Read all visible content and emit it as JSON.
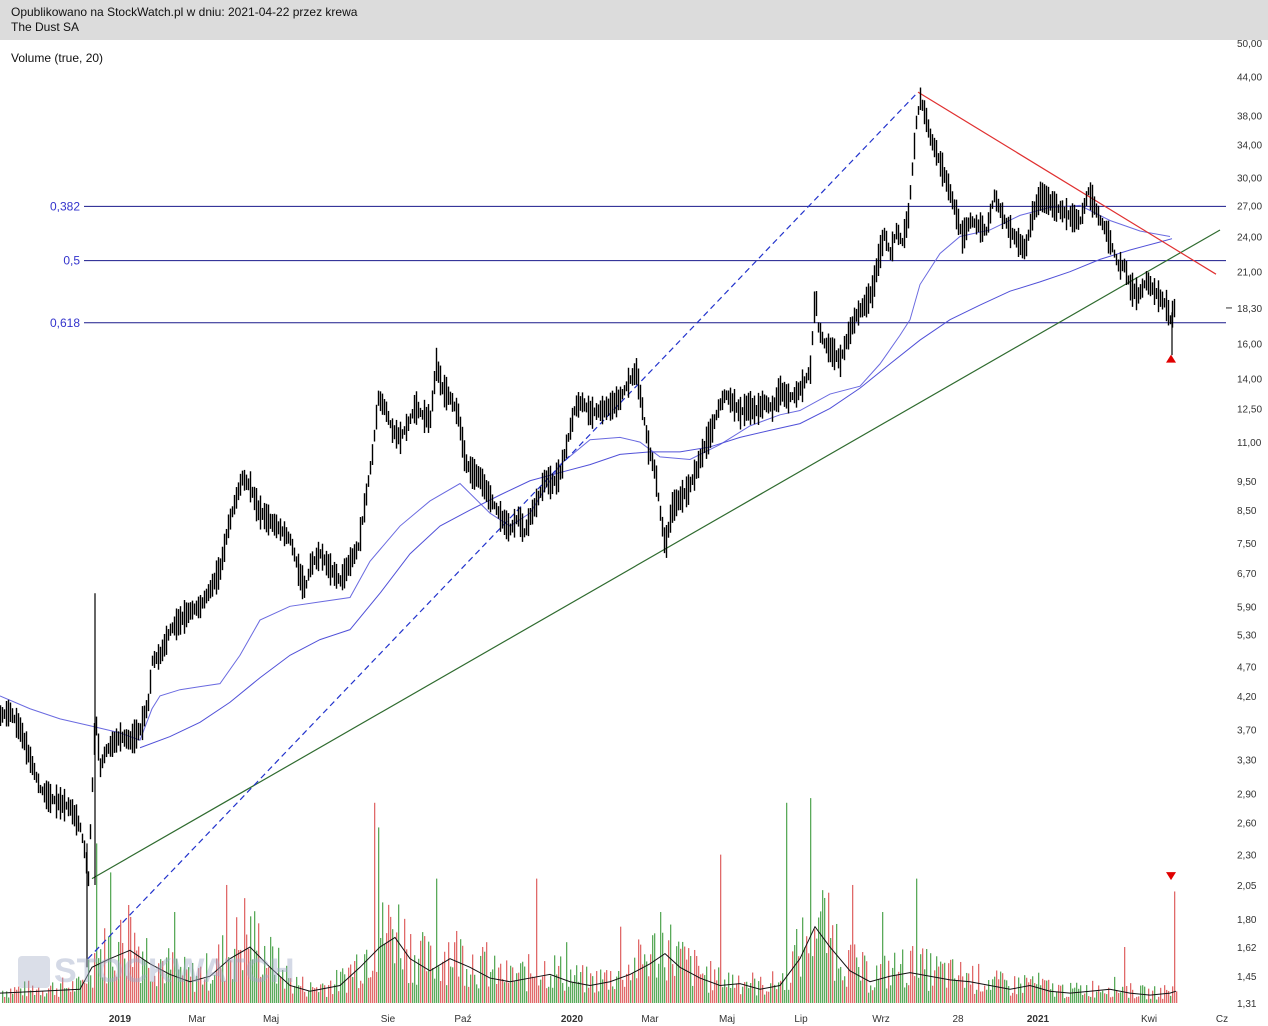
{
  "header": {
    "published": "Opublikowano na StockWatch.pl w dniu: 2021-04-22 przez krewa",
    "instrument": "The Dust SA"
  },
  "indicator_label": "Volume (true, 20)",
  "watermark": "STOCKWATCH",
  "chart_data": {
    "type": "line",
    "title": "",
    "y_scale": "log",
    "ylim": [
      1.31,
      50.0
    ],
    "y_ticks": [
      "50,00",
      "44,00",
      "38,00",
      "34,00",
      "30,00",
      "27,00",
      "24,00",
      "21,00",
      "18,30",
      "16,00",
      "14,00",
      "12,50",
      "11,00",
      "9,50",
      "8,50",
      "7,50",
      "6,70",
      "5,90",
      "5,30",
      "4,70",
      "4,20",
      "3,70",
      "3,30",
      "2,90",
      "2,60",
      "2,30",
      "2,05",
      "1,80",
      "1,62",
      "1,45",
      "1,31"
    ],
    "last_price_label": "18,30",
    "x_labels": [
      {
        "text": "2019",
        "bold": true
      },
      {
        "text": "Mar",
        "bold": false
      },
      {
        "text": "Maj",
        "bold": false
      },
      {
        "text": "Sie",
        "bold": false
      },
      {
        "text": "Paź",
        "bold": false
      },
      {
        "text": "2020",
        "bold": true
      },
      {
        "text": "Mar",
        "bold": false
      },
      {
        "text": "Maj",
        "bold": false
      },
      {
        "text": "Lip",
        "bold": false
      },
      {
        "text": "Wrz",
        "bold": false
      },
      {
        "text": "28",
        "bold": false
      },
      {
        "text": "2021",
        "bold": true
      },
      {
        "text": "Kwi",
        "bold": false
      },
      {
        "text": "Cz",
        "bold": false
      }
    ],
    "fibonacci_levels": [
      {
        "label": "0,382",
        "price": 26.9
      },
      {
        "label": "0,5",
        "price": 21.9
      },
      {
        "label": "0,618",
        "price": 17.3
      }
    ],
    "price_path": [
      [
        0,
        3.9
      ],
      [
        10,
        3.95
      ],
      [
        20,
        3.7
      ],
      [
        30,
        3.3
      ],
      [
        40,
        2.95
      ],
      [
        50,
        2.85
      ],
      [
        60,
        2.8
      ],
      [
        70,
        2.75
      ],
      [
        80,
        2.55
      ],
      [
        85,
        2.3
      ],
      [
        88,
        2.1
      ],
      [
        92,
        3.0
      ],
      [
        95,
        3.9
      ],
      [
        100,
        3.2
      ],
      [
        105,
        3.4
      ],
      [
        112,
        3.5
      ],
      [
        120,
        3.6
      ],
      [
        130,
        3.55
      ],
      [
        140,
        3.7
      ],
      [
        148,
        4.1
      ],
      [
        152,
        4.8
      ],
      [
        160,
        4.9
      ],
      [
        170,
        5.4
      ],
      [
        180,
        5.6
      ],
      [
        190,
        5.8
      ],
      [
        200,
        5.9
      ],
      [
        210,
        6.3
      ],
      [
        220,
        6.8
      ],
      [
        228,
        8.0
      ],
      [
        235,
        8.8
      ],
      [
        242,
        9.6
      ],
      [
        250,
        9.3
      ],
      [
        258,
        8.5
      ],
      [
        268,
        8.2
      ],
      [
        280,
        7.9
      ],
      [
        290,
        7.6
      ],
      [
        300,
        6.6
      ],
      [
        305,
        6.3
      ],
      [
        310,
        6.9
      ],
      [
        320,
        7.2
      ],
      [
        330,
        6.8
      ],
      [
        340,
        6.5
      ],
      [
        350,
        7.0
      ],
      [
        358,
        7.4
      ],
      [
        365,
        8.8
      ],
      [
        372,
        10.5
      ],
      [
        378,
        13.0
      ],
      [
        385,
        12.5
      ],
      [
        392,
        11.5
      ],
      [
        400,
        11.2
      ],
      [
        408,
        11.8
      ],
      [
        415,
        12.6
      ],
      [
        422,
        12.2
      ],
      [
        430,
        12.0
      ],
      [
        436,
        14.8
      ],
      [
        442,
        13.5
      ],
      [
        450,
        13.0
      ],
      [
        458,
        12.2
      ],
      [
        465,
        10.2
      ],
      [
        472,
        9.8
      ],
      [
        480,
        9.6
      ],
      [
        488,
        9.0
      ],
      [
        495,
        8.6
      ],
      [
        502,
        8.2
      ],
      [
        510,
        7.9
      ],
      [
        518,
        8.3
      ],
      [
        524,
        7.8
      ],
      [
        530,
        8.3
      ],
      [
        538,
        8.9
      ],
      [
        545,
        9.6
      ],
      [
        552,
        9.4
      ],
      [
        560,
        9.8
      ],
      [
        568,
        11.2
      ],
      [
        575,
        12.6
      ],
      [
        582,
        12.8
      ],
      [
        590,
        12.3
      ],
      [
        600,
        12.4
      ],
      [
        610,
        12.6
      ],
      [
        620,
        13.0
      ],
      [
        628,
        13.8
      ],
      [
        636,
        14.4
      ],
      [
        642,
        12.5
      ],
      [
        648,
        10.8
      ],
      [
        655,
        9.8
      ],
      [
        660,
        8.4
      ],
      [
        665,
        7.4
      ],
      [
        672,
        8.6
      ],
      [
        680,
        8.9
      ],
      [
        688,
        9.2
      ],
      [
        696,
        9.9
      ],
      [
        704,
        10.8
      ],
      [
        712,
        11.6
      ],
      [
        718,
        12.5
      ],
      [
        725,
        13.2
      ],
      [
        732,
        12.8
      ],
      [
        740,
        12.3
      ],
      [
        748,
        12.6
      ],
      [
        756,
        12.4
      ],
      [
        764,
        12.8
      ],
      [
        772,
        12.5
      ],
      [
        780,
        13.4
      ],
      [
        788,
        13.0
      ],
      [
        796,
        13.2
      ],
      [
        804,
        13.8
      ],
      [
        810,
        14.5
      ],
      [
        815,
        19.5
      ],
      [
        818,
        17.0
      ],
      [
        824,
        16.0
      ],
      [
        832,
        15.5
      ],
      [
        840,
        15.0
      ],
      [
        848,
        16.5
      ],
      [
        856,
        17.8
      ],
      [
        864,
        18.5
      ],
      [
        872,
        19.5
      ],
      [
        878,
        22.0
      ],
      [
        884,
        24.2
      ],
      [
        890,
        22.5
      ],
      [
        896,
        24.5
      ],
      [
        902,
        23.5
      ],
      [
        908,
        26.0
      ],
      [
        912,
        31.0
      ],
      [
        916,
        37.0
      ],
      [
        920,
        40.5
      ],
      [
        925,
        38.0
      ],
      [
        930,
        35.0
      ],
      [
        936,
        33.0
      ],
      [
        942,
        31.0
      ],
      [
        948,
        29.0
      ],
      [
        955,
        26.5
      ],
      [
        962,
        24.0
      ],
      [
        970,
        25.5
      ],
      [
        978,
        25.0
      ],
      [
        986,
        24.5
      ],
      [
        994,
        28.0
      ],
      [
        1002,
        26.0
      ],
      [
        1010,
        24.5
      ],
      [
        1018,
        23.5
      ],
      [
        1025,
        22.8
      ],
      [
        1032,
        26.0
      ],
      [
        1040,
        28.0
      ],
      [
        1048,
        27.5
      ],
      [
        1056,
        26.8
      ],
      [
        1064,
        26.3
      ],
      [
        1072,
        25.8
      ],
      [
        1080,
        25.5
      ],
      [
        1088,
        28.5
      ],
      [
        1094,
        27.0
      ],
      [
        1100,
        25.5
      ],
      [
        1106,
        24.5
      ],
      [
        1112,
        23.0
      ],
      [
        1118,
        21.5
      ],
      [
        1124,
        21.5
      ],
      [
        1130,
        19.8
      ],
      [
        1138,
        19.2
      ],
      [
        1146,
        20.3
      ],
      [
        1154,
        19.5
      ],
      [
        1160,
        19.0
      ],
      [
        1166,
        18.5
      ],
      [
        1170,
        17.5
      ],
      [
        1174,
        18.3
      ]
    ],
    "sma_short_path": [
      [
        0,
        4.2
      ],
      [
        30,
        4.0
      ],
      [
        60,
        3.85
      ],
      [
        90,
        3.75
      ],
      [
        120,
        3.65
      ],
      [
        140,
        3.55
      ],
      [
        152,
        4.0
      ],
      [
        160,
        4.2
      ],
      [
        180,
        4.3
      ],
      [
        200,
        4.35
      ],
      [
        220,
        4.4
      ],
      [
        240,
        4.9
      ],
      [
        260,
        5.6
      ],
      [
        290,
        5.9
      ],
      [
        320,
        6.0
      ],
      [
        350,
        6.1
      ],
      [
        370,
        7.0
      ],
      [
        400,
        8.0
      ],
      [
        430,
        8.8
      ],
      [
        460,
        9.4
      ],
      [
        490,
        8.4
      ],
      [
        510,
        8.0
      ],
      [
        530,
        8.4
      ],
      [
        560,
        10.1
      ],
      [
        590,
        11.1
      ],
      [
        620,
        11.2
      ],
      [
        640,
        11.0
      ],
      [
        660,
        10.4
      ],
      [
        690,
        10.3
      ],
      [
        720,
        10.9
      ],
      [
        750,
        11.7
      ],
      [
        780,
        12.2
      ],
      [
        800,
        12.4
      ],
      [
        830,
        13.2
      ],
      [
        860,
        13.6
      ],
      [
        880,
        14.8
      ],
      [
        900,
        16.5
      ],
      [
        910,
        17.5
      ],
      [
        920,
        20.0
      ],
      [
        940,
        22.5
      ],
      [
        960,
        24.0
      ],
      [
        990,
        24.6
      ],
      [
        1020,
        26.0
      ],
      [
        1050,
        26.8
      ],
      [
        1080,
        27.0
      ],
      [
        1110,
        25.5
      ],
      [
        1140,
        24.5
      ],
      [
        1170,
        24.0
      ]
    ],
    "sma_long_path": [
      [
        140,
        3.45
      ],
      [
        170,
        3.6
      ],
      [
        200,
        3.8
      ],
      [
        230,
        4.1
      ],
      [
        260,
        4.5
      ],
      [
        290,
        4.9
      ],
      [
        320,
        5.2
      ],
      [
        350,
        5.4
      ],
      [
        380,
        6.2
      ],
      [
        410,
        7.2
      ],
      [
        440,
        8.0
      ],
      [
        470,
        8.5
      ],
      [
        500,
        9.0
      ],
      [
        530,
        9.5
      ],
      [
        560,
        9.8
      ],
      [
        590,
        10.1
      ],
      [
        620,
        10.5
      ],
      [
        650,
        10.6
      ],
      [
        680,
        10.6
      ],
      [
        710,
        10.8
      ],
      [
        740,
        11.2
      ],
      [
        770,
        11.5
      ],
      [
        800,
        11.8
      ],
      [
        830,
        12.5
      ],
      [
        860,
        13.5
      ],
      [
        890,
        14.8
      ],
      [
        920,
        16.2
      ],
      [
        950,
        17.5
      ],
      [
        980,
        18.5
      ],
      [
        1010,
        19.5
      ],
      [
        1040,
        20.2
      ],
      [
        1070,
        21.0
      ],
      [
        1100,
        22.0
      ],
      [
        1130,
        22.8
      ],
      [
        1160,
        23.5
      ],
      [
        1172,
        23.8
      ]
    ],
    "trendlines": [
      {
        "name": "support",
        "color": "#2f6b2f",
        "from": [
          92,
          2.1
        ],
        "to": [
          1220,
          24.6
        ],
        "style": "solid"
      },
      {
        "name": "resistance",
        "color": "#e03030",
        "from": [
          918,
          41.5
        ],
        "to": [
          1216,
          20.8
        ],
        "style": "solid"
      },
      {
        "name": "projection",
        "color": "#2233cc",
        "from": [
          88,
          1.55
        ],
        "to": [
          918,
          41.5
        ],
        "style": "dashed"
      }
    ],
    "volume_avg_path": [
      [
        0,
        1.36
      ],
      [
        40,
        1.37
      ],
      [
        80,
        1.38
      ],
      [
        92,
        1.5
      ],
      [
        110,
        1.55
      ],
      [
        130,
        1.6
      ],
      [
        150,
        1.52
      ],
      [
        170,
        1.46
      ],
      [
        190,
        1.42
      ],
      [
        210,
        1.45
      ],
      [
        230,
        1.55
      ],
      [
        250,
        1.62
      ],
      [
        270,
        1.5
      ],
      [
        290,
        1.4
      ],
      [
        310,
        1.37
      ],
      [
        340,
        1.4
      ],
      [
        360,
        1.5
      ],
      [
        380,
        1.62
      ],
      [
        395,
        1.68
      ],
      [
        410,
        1.55
      ],
      [
        430,
        1.48
      ],
      [
        450,
        1.55
      ],
      [
        470,
        1.5
      ],
      [
        490,
        1.44
      ],
      [
        510,
        1.42
      ],
      [
        530,
        1.44
      ],
      [
        550,
        1.46
      ],
      [
        570,
        1.42
      ],
      [
        590,
        1.4
      ],
      [
        610,
        1.42
      ],
      [
        630,
        1.46
      ],
      [
        650,
        1.52
      ],
      [
        665,
        1.58
      ],
      [
        680,
        1.5
      ],
      [
        700,
        1.44
      ],
      [
        720,
        1.4
      ],
      [
        740,
        1.41
      ],
      [
        760,
        1.38
      ],
      [
        780,
        1.4
      ],
      [
        800,
        1.55
      ],
      [
        815,
        1.75
      ],
      [
        830,
        1.62
      ],
      [
        850,
        1.48
      ],
      [
        870,
        1.42
      ],
      [
        890,
        1.45
      ],
      [
        910,
        1.47
      ],
      [
        930,
        1.45
      ],
      [
        950,
        1.43
      ],
      [
        970,
        1.42
      ],
      [
        990,
        1.4
      ],
      [
        1010,
        1.38
      ],
      [
        1030,
        1.4
      ],
      [
        1050,
        1.37
      ],
      [
        1070,
        1.36
      ],
      [
        1090,
        1.37
      ],
      [
        1110,
        1.38
      ],
      [
        1130,
        1.36
      ],
      [
        1150,
        1.35
      ],
      [
        1170,
        1.36
      ],
      [
        1176,
        1.37
      ]
    ],
    "volume_peaks": [
      [
        96,
        2.4
      ],
      [
        110,
        2.15
      ],
      [
        127,
        1.9
      ],
      [
        174,
        1.85
      ],
      [
        226,
        2.05
      ],
      [
        244,
        1.95
      ],
      [
        374,
        2.8
      ],
      [
        378,
        2.55
      ],
      [
        436,
        2.1
      ],
      [
        486,
        1.65
      ],
      [
        536,
        2.1
      ],
      [
        565,
        1.65
      ],
      [
        620,
        1.75
      ],
      [
        660,
        1.85
      ],
      [
        720,
        2.3
      ],
      [
        785,
        2.8
      ],
      [
        810,
        2.85
      ],
      [
        852,
        2.05
      ],
      [
        882,
        1.85
      ],
      [
        916,
        2.1
      ],
      [
        1124,
        1.62
      ],
      [
        1174,
        2.0
      ]
    ],
    "markers": [
      {
        "name": "low-marker",
        "color": "#e00000",
        "direction": "up",
        "at": [
          1171,
          15.1
        ]
      },
      {
        "name": "volume-marker",
        "color": "#e00000",
        "direction": "down",
        "at": [
          1171,
          2.12
        ]
      }
    ]
  }
}
